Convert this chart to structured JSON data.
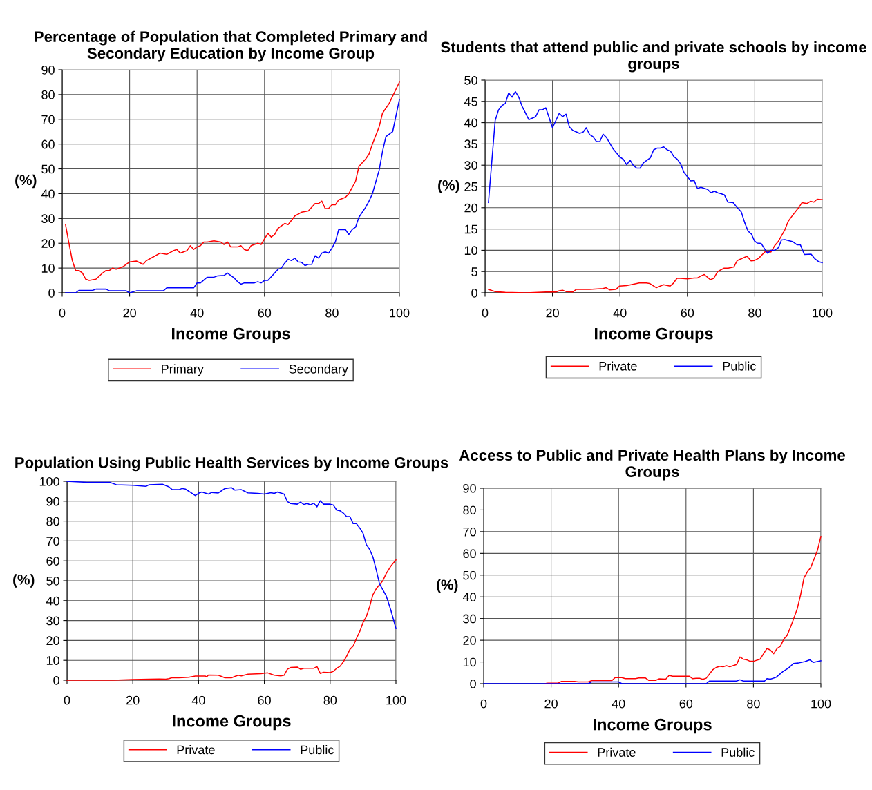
{
  "chart_data": [
    {
      "type": "line",
      "title": "Percentage of Population that Completed Primary and Secondary Education by Income Group",
      "xlabel": "Income Groups",
      "ylabel": "(%)",
      "xlim": [
        0,
        100
      ],
      "xticks": [
        0,
        20,
        40,
        60,
        80,
        100
      ],
      "ylim": [
        0,
        90
      ],
      "yticks": [
        0,
        10,
        20,
        30,
        40,
        50,
        60,
        70,
        80,
        90
      ],
      "grid": true,
      "legend": "bottom",
      "marker": "none",
      "line_style": "solid",
      "series": [
        {
          "name": "Primary",
          "color": "#ff0000",
          "x": [
            1,
            2,
            3,
            4,
            5,
            6,
            7,
            8,
            10,
            12,
            13,
            14,
            15,
            16,
            18,
            20,
            22,
            24,
            25,
            27,
            29,
            31,
            33,
            34,
            35,
            37,
            38,
            39,
            40,
            41,
            42,
            43,
            45,
            47,
            48,
            49,
            50,
            52,
            53,
            54,
            55,
            56,
            58,
            59,
            61,
            62,
            63,
            64,
            66,
            67,
            69,
            71,
            73,
            75,
            76,
            77,
            78,
            79,
            80,
            81,
            82,
            84,
            85,
            87,
            88,
            90,
            91,
            92,
            94,
            95,
            97,
            100
          ],
          "values": [
            27.5,
            20,
            13,
            9,
            9,
            8,
            5.5,
            5,
            5.5,
            8,
            9,
            9,
            10,
            9.5,
            10.5,
            12.5,
            12.8,
            11.5,
            13,
            14.5,
            16,
            15.5,
            17,
            17.5,
            16,
            17,
            19,
            17.5,
            18.5,
            19,
            20.5,
            20.5,
            21,
            20.5,
            19.5,
            20.5,
            18.5,
            18.5,
            19,
            17.5,
            17,
            19,
            20,
            19.5,
            24,
            22.5,
            23.5,
            26,
            28,
            27.5,
            31,
            32.5,
            33,
            36,
            36,
            37,
            34,
            34,
            35.5,
            35.5,
            37.5,
            38.5,
            40,
            45,
            51,
            54,
            56,
            60,
            67,
            72.5,
            76.5,
            85
          ]
        },
        {
          "name": "Secondary",
          "color": "#0000ff",
          "x": [
            1,
            4,
            5,
            9,
            10,
            13,
            14,
            19,
            20,
            22,
            30,
            31,
            39,
            40,
            41,
            43,
            45,
            46,
            48,
            49,
            51,
            52,
            53,
            54,
            57,
            58,
            59,
            60,
            61,
            62,
            64,
            65,
            66,
            67,
            68,
            69,
            70,
            71,
            72,
            73,
            74,
            75,
            76,
            77,
            78,
            79,
            80,
            81,
            82,
            84,
            85,
            86,
            87,
            88,
            90,
            91,
            92,
            94,
            95,
            96,
            98,
            100
          ],
          "values": [
            0,
            0,
            1,
            1,
            1.5,
            1.5,
            0.8,
            0.8,
            0,
            0.8,
            0.8,
            2,
            2,
            4,
            4,
            6.3,
            6.3,
            6.8,
            7,
            8,
            6,
            4.5,
            3.5,
            4,
            4,
            4.5,
            4,
            5,
            5,
            6.5,
            9.5,
            10,
            12,
            13.5,
            13,
            14,
            12.5,
            12.3,
            11,
            11.5,
            11.5,
            15,
            14,
            16,
            16.5,
            16,
            18,
            20.5,
            25.5,
            25.5,
            23.5,
            25.5,
            26.5,
            30.5,
            34.5,
            37,
            40,
            49.5,
            57,
            63,
            65,
            78
          ]
        }
      ]
    },
    {
      "type": "line",
      "title": "Students that attend public and private schools by income groups",
      "xlabel": "Income Groups",
      "ylabel": "(%)",
      "xlim": [
        0,
        100
      ],
      "xticks": [
        0,
        20,
        40,
        60,
        80,
        100
      ],
      "ylim": [
        0,
        50
      ],
      "yticks": [
        0,
        5,
        10,
        15,
        20,
        25,
        30,
        35,
        40,
        45,
        50
      ],
      "grid": true,
      "legend": "bottom",
      "marker": "none",
      "line_style": "solid",
      "series": [
        {
          "name": "Private",
          "color": "#ff0000",
          "x": [
            1,
            3,
            6,
            12,
            18,
            21,
            22,
            23,
            24,
            26,
            27,
            31,
            35,
            35.9,
            36.9,
            38.8,
            39.9,
            42,
            43.8,
            45.7,
            47.8,
            48.8,
            50.8,
            52.9,
            54.9,
            55.8,
            56.9,
            58,
            60,
            62,
            63,
            64.1,
            65,
            66.8,
            67.8,
            69,
            70.9,
            72.1,
            73.8,
            74.8,
            77.7,
            78.9,
            79.9,
            81.1,
            83.1,
            84.8,
            85.9,
            86.9,
            88.9,
            89.9,
            91,
            93,
            94,
            95.5,
            96.5,
            97.5,
            98.5,
            100
          ],
          "values": [
            0.8,
            0.3,
            0.1,
            0,
            0.2,
            0.2,
            0.5,
            0.6,
            0.3,
            0.2,
            0.8,
            0.8,
            1.0,
            1.2,
            0.7,
            0.8,
            1.6,
            1.7,
            2,
            2.3,
            2.3,
            2.2,
            1.2,
            1.9,
            1.6,
            2.2,
            3.4,
            3.4,
            3.3,
            3.5,
            3.5,
            4,
            4.3,
            3.1,
            3.4,
            5,
            5.8,
            5.8,
            6.1,
            7.6,
            8.6,
            7.5,
            7.6,
            8.1,
            9.7,
            9.6,
            11.1,
            12,
            14.8,
            16.8,
            18,
            20,
            21.2,
            21,
            21.5,
            21.3,
            22,
            21.9
          ]
        },
        {
          "name": "Public",
          "color": "#0000ff",
          "x": [
            1,
            3,
            4,
            5,
            6,
            7,
            8,
            9,
            10,
            11,
            13,
            15,
            16,
            17,
            18,
            20,
            22,
            23,
            24,
            25,
            26,
            28,
            29,
            30,
            31,
            32,
            33,
            34,
            35,
            36,
            38,
            40,
            41,
            42,
            43,
            44,
            45,
            46,
            47,
            49,
            50,
            51,
            52,
            53,
            54,
            55,
            56,
            57,
            58,
            59,
            61,
            62,
            63,
            64,
            66,
            67,
            68,
            69,
            70,
            71,
            72,
            73.6,
            74.5,
            76,
            77,
            78,
            79,
            79.9,
            80.7,
            81.9,
            83,
            83.8,
            84.8,
            85.9,
            87,
            87.9,
            88.9,
            91.3,
            92.5,
            93.5,
            94.7,
            96.7,
            97.8,
            99,
            100
          ],
          "values": [
            21.2,
            40.5,
            43,
            44,
            44.5,
            47,
            46,
            47.3,
            46,
            43.8,
            40.7,
            41.4,
            43,
            43,
            43.5,
            38.8,
            42.2,
            41.4,
            42,
            39,
            38.2,
            37.5,
            37.7,
            38.8,
            37.2,
            36.7,
            35.6,
            35.5,
            37.3,
            36.5,
            33.8,
            31.9,
            31.4,
            30.1,
            31.2,
            29.9,
            29.3,
            29.3,
            30.6,
            31.7,
            33.6,
            34,
            34,
            34.3,
            33.6,
            33.3,
            32,
            31.4,
            30.3,
            28.3,
            26.3,
            26.4,
            24.5,
            24.8,
            24.3,
            23.5,
            23.9,
            23.5,
            23.3,
            23.0,
            21.3,
            21.2,
            20.3,
            19,
            16.5,
            14.5,
            13.8,
            12.2,
            11.7,
            11.6,
            10.2,
            9.3,
            10,
            10,
            10.6,
            12.4,
            12.5,
            12,
            11.3,
            11.3,
            9,
            9.1,
            8.0,
            7.3,
            7.1
          ]
        }
      ]
    },
    {
      "type": "line",
      "title": "Population Using Public Health Services by Income Groups",
      "xlabel": "Income Groups",
      "ylabel": "(%)",
      "xlim": [
        0,
        100
      ],
      "xticks": [
        0,
        20,
        40,
        60,
        80,
        100
      ],
      "ylim": [
        0,
        100
      ],
      "yticks": [
        0,
        10,
        20,
        30,
        40,
        50,
        60,
        70,
        80,
        90,
        100
      ],
      "grid": true,
      "legend": "bottom",
      "marker": "none",
      "line_style": "solid",
      "series": [
        {
          "name": "Private",
          "color": "#ff0000",
          "x": [
            0,
            14,
            20,
            25,
            28,
            30,
            31,
            32,
            34,
            37,
            39,
            42,
            42.5,
            43,
            46,
            48,
            50,
            52,
            53,
            55,
            59,
            61,
            63,
            65,
            66,
            67,
            68,
            70,
            71,
            72,
            75,
            76,
            77,
            78,
            80,
            81,
            82,
            83,
            84,
            85,
            86,
            87,
            88,
            89,
            90,
            91,
            92,
            93,
            94,
            95,
            96,
            97,
            98.5,
            100
          ],
          "values": [
            0,
            0,
            0.3,
            0.5,
            0.6,
            0.5,
            0.8,
            1.3,
            1.2,
            1.5,
            2.1,
            2.1,
            1.7,
            2.6,
            2.5,
            1.2,
            1.2,
            2.5,
            2.2,
            3.0,
            3.3,
            3.7,
            2.5,
            2.2,
            2.5,
            5.5,
            6.4,
            6.6,
            5.5,
            6.0,
            6.0,
            6.8,
            3.4,
            4.0,
            3.8,
            4.5,
            6.0,
            7.0,
            9.2,
            12,
            15.5,
            17.2,
            21,
            24.5,
            29,
            32,
            37,
            43,
            46,
            48,
            50,
            53.5,
            57.5,
            60.5
          ]
        },
        {
          "name": "Public",
          "color": "#0000ff",
          "x": [
            0,
            6,
            13,
            15,
            20,
            24,
            25,
            29,
            31,
            32,
            34,
            35,
            36,
            38,
            39,
            40,
            41,
            43,
            44,
            46,
            48,
            50,
            51,
            53,
            55,
            58,
            60,
            62,
            63,
            64,
            66,
            67,
            68,
            70,
            71,
            72,
            73,
            74,
            75,
            76,
            77,
            78,
            80,
            81,
            82,
            83,
            84,
            85,
            86,
            87,
            88,
            89,
            90,
            91,
            92,
            93,
            94,
            95,
            96,
            97,
            98.5,
            100
          ],
          "values": [
            100,
            99.5,
            99.5,
            98.3,
            98,
            97.5,
            98.3,
            98.5,
            97.2,
            95.8,
            95.8,
            96.4,
            96.1,
            94,
            92.8,
            94,
            94.6,
            93.6,
            94.4,
            94.1,
            96.4,
            96.8,
            95.6,
            95.8,
            94.2,
            93.9,
            93.6,
            94.3,
            93.9,
            94.6,
            93.6,
            89.8,
            88.8,
            88.5,
            89.5,
            88.3,
            88.9,
            88.1,
            89,
            87.2,
            90.2,
            88.5,
            88.5,
            88,
            85.5,
            85.2,
            84,
            82.3,
            82.3,
            78.7,
            78.7,
            76.5,
            73.9,
            68.2,
            65.8,
            62,
            55.5,
            48.5,
            45.5,
            42.6,
            35,
            26
          ]
        }
      ]
    },
    {
      "type": "line",
      "title": "Access to Public and Private Health Plans by Income Groups",
      "xlabel": "Income Groups",
      "ylabel": "(%)",
      "xlim": [
        0,
        100
      ],
      "xticks": [
        0,
        20,
        40,
        60,
        80,
        100
      ],
      "ylim": [
        0,
        90
      ],
      "yticks": [
        0,
        10,
        20,
        30,
        40,
        50,
        60,
        70,
        80,
        90
      ],
      "grid": true,
      "legend": "bottom",
      "marker": "none",
      "line_style": "solid",
      "series": [
        {
          "name": "Private",
          "color": "#ff0000",
          "x": [
            18,
            19,
            22,
            23,
            27,
            28,
            31,
            32,
            38,
            39,
            41,
            42,
            45,
            46,
            48,
            49,
            51,
            52,
            54,
            55,
            56,
            61,
            62,
            63,
            64,
            65,
            66,
            68,
            69,
            70,
            71,
            72,
            73,
            75,
            76,
            77,
            78,
            79,
            80,
            82,
            83,
            84,
            85,
            86,
            87,
            88,
            89,
            90,
            91,
            92,
            93,
            94,
            95,
            96,
            97,
            98,
            99,
            100
          ],
          "values": [
            0,
            0.2,
            0.2,
            1.0,
            1.0,
            0.8,
            0.8,
            1.4,
            1.4,
            2.8,
            2.8,
            2.3,
            2.3,
            2.6,
            2.6,
            1.5,
            1.5,
            2.2,
            2.1,
            3.8,
            3.4,
            3.4,
            2.3,
            2.5,
            2.5,
            2.0,
            2.5,
            6.5,
            7.5,
            8,
            7.8,
            8.3,
            7.8,
            8.8,
            12.3,
            11.3,
            11.0,
            10.3,
            10.3,
            11.3,
            13.8,
            16.2,
            15.5,
            13.8,
            16.2,
            17.2,
            20.5,
            22.3,
            26,
            30.2,
            34.5,
            41,
            48.8,
            51.5,
            53.5,
            57.5,
            61.5,
            67.8
          ]
        },
        {
          "name": "Public",
          "color": "#0000ff",
          "x": [
            0,
            31,
            32,
            40,
            41,
            66,
            67,
            75,
            76,
            77,
            83.3,
            84,
            85,
            86.7,
            87.9,
            88.7,
            90.4,
            91.9,
            93.3,
            95.3,
            96.7,
            97.7,
            100
          ],
          "values": [
            0,
            0,
            0.8,
            0.8,
            0,
            0,
            1.2,
            1.2,
            1.8,
            1.2,
            1.2,
            2.3,
            2.1,
            2.9,
            4.5,
            5.5,
            7.2,
            9.3,
            9.5,
            10.2,
            11,
            9.8,
            10.5
          ]
        }
      ]
    }
  ]
}
